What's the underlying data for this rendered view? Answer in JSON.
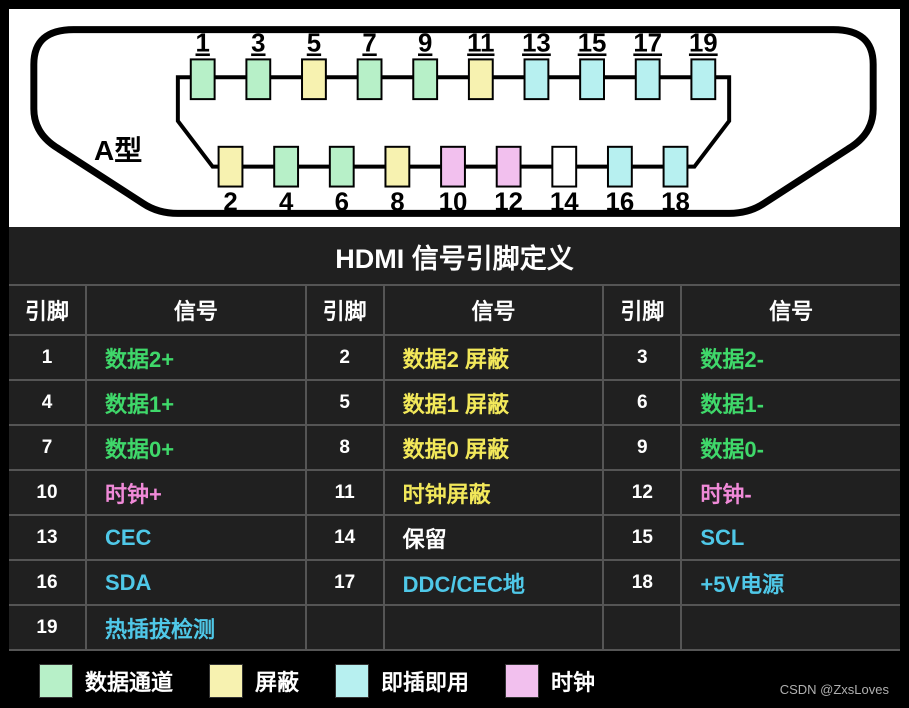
{
  "connector": {
    "type_label": "A型",
    "top_pins": [
      {
        "n": 1,
        "color": "#b7f0c8"
      },
      {
        "n": 3,
        "color": "#b7f0c8"
      },
      {
        "n": 5,
        "color": "#f7f2b0"
      },
      {
        "n": 7,
        "color": "#b7f0c8"
      },
      {
        "n": 9,
        "color": "#b7f0c8"
      },
      {
        "n": 11,
        "color": "#f7f2b0"
      },
      {
        "n": 13,
        "color": "#b7f0f0"
      },
      {
        "n": 15,
        "color": "#b7f0f0"
      },
      {
        "n": 17,
        "color": "#b7f0f0"
      },
      {
        "n": 19,
        "color": "#b7f0f0"
      }
    ],
    "bottom_pins": [
      {
        "n": 2,
        "color": "#f7f2b0"
      },
      {
        "n": 4,
        "color": "#b7f0c8"
      },
      {
        "n": 6,
        "color": "#b7f0c8"
      },
      {
        "n": 8,
        "color": "#f7f2b0"
      },
      {
        "n": 10,
        "color": "#f2c0ee"
      },
      {
        "n": 12,
        "color": "#f2c0ee"
      },
      {
        "n": 14,
        "color": "#ffffff"
      },
      {
        "n": 16,
        "color": "#b7f0f0"
      },
      {
        "n": 18,
        "color": "#b7f0f0"
      }
    ],
    "outline_color": "#000000",
    "pin_stroke": "#000000",
    "label_fontsize": 26
  },
  "table": {
    "title": "HDMI  信号引脚定义",
    "header_pin": "引脚",
    "header_sig": "信号",
    "background": "#202020",
    "border_color": "#555555",
    "header_text_color": "#ffffff",
    "pin_num_color": "#ffffff",
    "rows": [
      [
        {
          "pin": "1",
          "sig": "数据2+",
          "color": "#3fd86a"
        },
        {
          "pin": "2",
          "sig": "数据2 屏蔽",
          "color": "#f2e85a"
        },
        {
          "pin": "3",
          "sig": "数据2-",
          "color": "#3fd86a"
        }
      ],
      [
        {
          "pin": "4",
          "sig": "数据1+",
          "color": "#3fd86a"
        },
        {
          "pin": "5",
          "sig": "数据1 屏蔽",
          "color": "#f2e85a"
        },
        {
          "pin": "6",
          "sig": "数据1-",
          "color": "#3fd86a"
        }
      ],
      [
        {
          "pin": "7",
          "sig": "数据0+",
          "color": "#3fd86a"
        },
        {
          "pin": "8",
          "sig": "数据0 屏蔽",
          "color": "#f2e85a"
        },
        {
          "pin": "9",
          "sig": "数据0-",
          "color": "#3fd86a"
        }
      ],
      [
        {
          "pin": "10",
          "sig": "时钟+",
          "color": "#f08ad8"
        },
        {
          "pin": "11",
          "sig": "时钟屏蔽",
          "color": "#f2e85a"
        },
        {
          "pin": "12",
          "sig": "时钟-",
          "color": "#f08ad8"
        }
      ],
      [
        {
          "pin": "13",
          "sig": "CEC",
          "color": "#4fc8e8"
        },
        {
          "pin": "14",
          "sig": "保留",
          "color": "#ffffff"
        },
        {
          "pin": "15",
          "sig": "SCL",
          "color": "#4fc8e8"
        }
      ],
      [
        {
          "pin": "16",
          "sig": "SDA",
          "color": "#4fc8e8"
        },
        {
          "pin": "17",
          "sig": "DDC/CEC地",
          "color": "#4fc8e8"
        },
        {
          "pin": "18",
          "sig": "+5V电源",
          "color": "#4fc8e8"
        }
      ],
      [
        {
          "pin": "19",
          "sig": "热插拔检测",
          "color": "#4fc8e8"
        },
        {
          "pin": "",
          "sig": "",
          "color": "#ffffff"
        },
        {
          "pin": "",
          "sig": "",
          "color": "#ffffff"
        }
      ]
    ]
  },
  "legend": {
    "items": [
      {
        "color": "#b7f0c8",
        "label": "数据通道"
      },
      {
        "color": "#f7f2b0",
        "label": "屏蔽"
      },
      {
        "color": "#b7f0f0",
        "label": "即插即用"
      },
      {
        "color": "#f2c0ee",
        "label": "时钟"
      }
    ]
  },
  "watermark": "CSDN @ZxsLoves"
}
